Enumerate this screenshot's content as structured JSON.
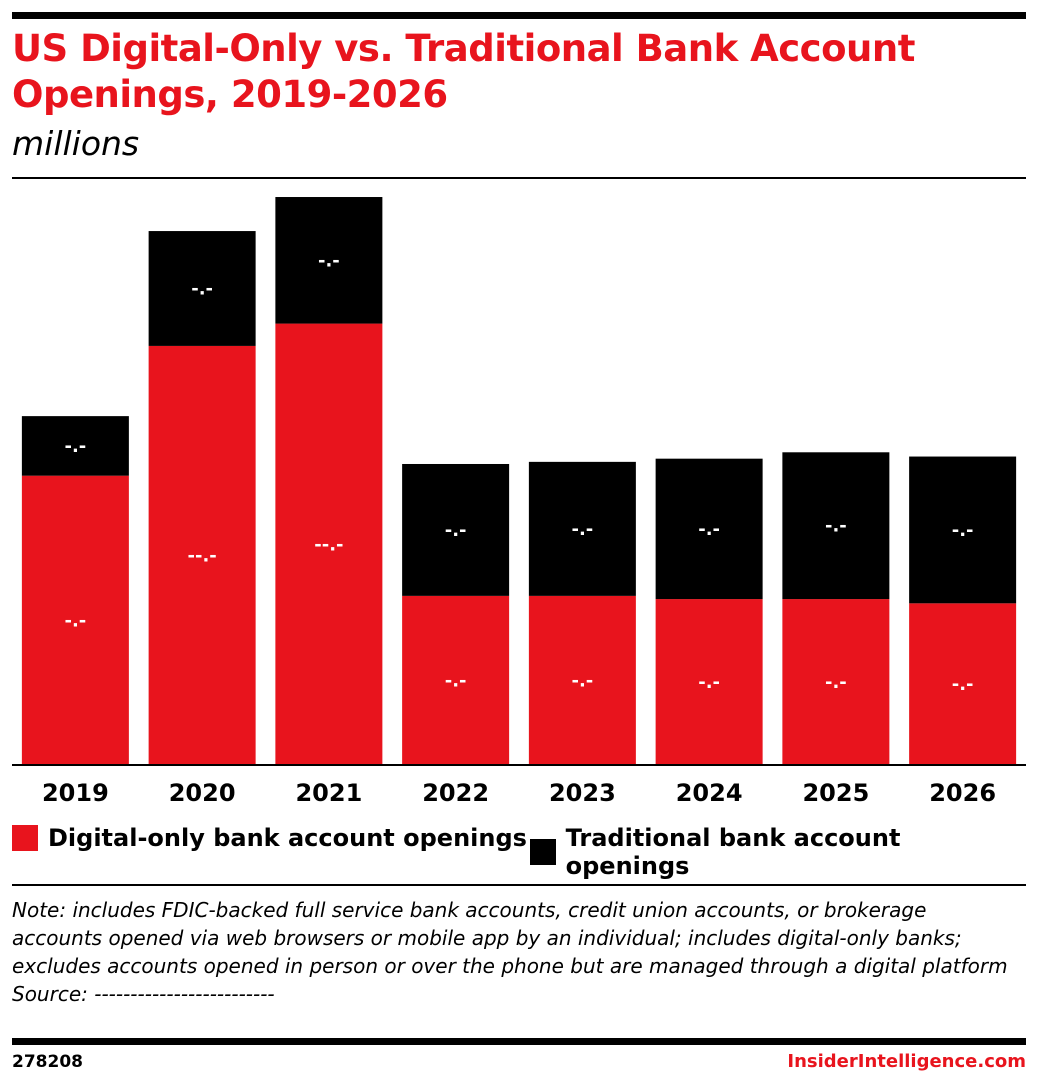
{
  "header": {
    "title": "US Digital-Only vs. Traditional Bank Account Openings, 2019-2026",
    "subtitle": "millions"
  },
  "chart_data": {
    "type": "bar",
    "stacked": true,
    "categories": [
      "2019",
      "2020",
      "2021",
      "2022",
      "2023",
      "2024",
      "2025",
      "2026"
    ],
    "series": [
      {
        "name": "Digital-only bank account openings",
        "color": "#e8141d",
        "values": [
          27.2,
          39.4,
          41.5,
          15.9,
          15.9,
          15.6,
          15.6,
          15.2
        ],
        "data_labels": [
          "-.-",
          "--.-",
          "--.-",
          "-.-",
          "-.-",
          "-.-",
          "-.-",
          "-.-"
        ]
      },
      {
        "name": "Traditional bank account openings",
        "color": "#000000",
        "values": [
          5.6,
          10.8,
          11.9,
          12.4,
          12.6,
          13.2,
          13.8,
          13.8
        ],
        "data_labels": [
          "-.-",
          "-.-",
          "-.-",
          "-.-",
          "-.-",
          "-.-",
          "-.-",
          "-.-"
        ]
      }
    ],
    "ylim": [
      0,
      55
    ],
    "grid": false,
    "legend": "bottom"
  },
  "legend": {
    "digital_label": "Digital-only bank account openings",
    "traditional_label": "Traditional bank account openings"
  },
  "note": {
    "text": "Note: includes FDIC-backed full service bank accounts, credit union accounts, or brokerage accounts opened via web browsers or mobile app by an individual; includes digital-only banks; excludes accounts opened in person or over the phone but are managed through a digital platform",
    "source": "Source: -------------------------"
  },
  "footer": {
    "chart_id": "278208",
    "brand": "InsiderIntelligence.com"
  }
}
